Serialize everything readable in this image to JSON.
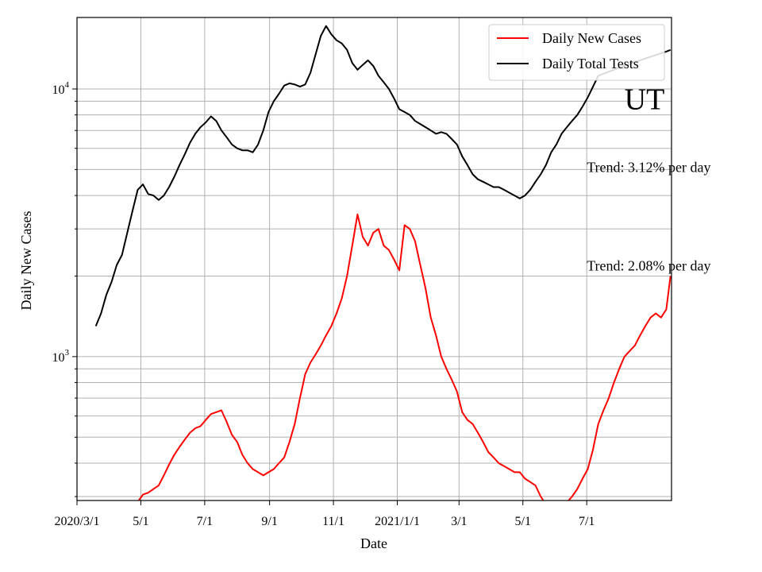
{
  "chart_data": {
    "type": "line",
    "xlabel": "Date",
    "ylabel": "Daily New Cases",
    "y_scale": "log",
    "ylim": [
      290,
      18500
    ],
    "xlim": [
      "2020-03-01",
      "2021-09-20"
    ],
    "grid": true,
    "legend_position": "top-right",
    "x_ticks": [
      {
        "date": "2020-03-01",
        "label": "2020/3/1"
      },
      {
        "date": "2020-05-01",
        "label": "5/1"
      },
      {
        "date": "2020-07-01",
        "label": "7/1"
      },
      {
        "date": "2020-09-01",
        "label": "9/1"
      },
      {
        "date": "2020-11-01",
        "label": "11/1"
      },
      {
        "date": "2021-01-01",
        "label": "2021/1/1"
      },
      {
        "date": "2021-03-01",
        "label": "3/1"
      },
      {
        "date": "2021-05-01",
        "label": "5/1"
      },
      {
        "date": "2021-07-01",
        "label": "7/1"
      }
    ],
    "y_major_ticks": [
      {
        "value": 1000,
        "base": "10",
        "exp": "3"
      },
      {
        "value": 10000,
        "base": "10",
        "exp": "4"
      }
    ],
    "series": [
      {
        "name": "Daily New Cases",
        "color": "#ff0000",
        "x": [
          "2020-04-29",
          "2020-05-03",
          "2020-05-08",
          "2020-05-13",
          "2020-05-18",
          "2020-05-23",
          "2020-05-28",
          "2020-06-02",
          "2020-06-07",
          "2020-06-12",
          "2020-06-17",
          "2020-06-22",
          "2020-06-27",
          "2020-07-02",
          "2020-07-07",
          "2020-07-12",
          "2020-07-17",
          "2020-07-22",
          "2020-07-27",
          "2020-08-01",
          "2020-08-06",
          "2020-08-11",
          "2020-08-16",
          "2020-08-21",
          "2020-08-26",
          "2020-08-31",
          "2020-09-05",
          "2020-09-10",
          "2020-09-15",
          "2020-09-20",
          "2020-09-25",
          "2020-09-30",
          "2020-10-05",
          "2020-10-10",
          "2020-10-15",
          "2020-10-20",
          "2020-10-25",
          "2020-10-30",
          "2020-11-04",
          "2020-11-09",
          "2020-11-14",
          "2020-11-19",
          "2020-11-24",
          "2020-11-29",
          "2020-12-04",
          "2020-12-09",
          "2020-12-14",
          "2020-12-19",
          "2020-12-24",
          "2020-12-29",
          "2021-01-03",
          "2021-01-08",
          "2021-01-13",
          "2021-01-18",
          "2021-01-23",
          "2021-01-28",
          "2021-02-02",
          "2021-02-07",
          "2021-02-12",
          "2021-02-17",
          "2021-02-22",
          "2021-02-27",
          "2021-03-04",
          "2021-03-09",
          "2021-03-14",
          "2021-03-19",
          "2021-03-24",
          "2021-03-29",
          "2021-04-03",
          "2021-04-08",
          "2021-04-13",
          "2021-04-18",
          "2021-04-23",
          "2021-04-28",
          "2021-05-03",
          "2021-05-08",
          "2021-05-13",
          "2021-05-18",
          "2021-05-23",
          "2021-05-28",
          "2021-06-02",
          "2021-06-07",
          "2021-06-12",
          "2021-06-17",
          "2021-06-22",
          "2021-06-27",
          "2021-07-02",
          "2021-07-07",
          "2021-07-12",
          "2021-07-17",
          "2021-07-22",
          "2021-07-27",
          "2021-08-01",
          "2021-08-06",
          "2021-08-11",
          "2021-08-16",
          "2021-08-21",
          "2021-08-26",
          "2021-08-31",
          "2021-09-05",
          "2021-09-10",
          "2021-09-15",
          "2021-09-19"
        ],
        "y": [
          290,
          305,
          310,
          320,
          330,
          360,
          395,
          430,
          460,
          490,
          520,
          540,
          550,
          580,
          610,
          620,
          630,
          570,
          510,
          480,
          430,
          400,
          380,
          370,
          360,
          370,
          380,
          400,
          420,
          480,
          560,
          700,
          860,
          950,
          1020,
          1100,
          1200,
          1300,
          1450,
          1650,
          2000,
          2600,
          3400,
          2800,
          2600,
          2900,
          3000,
          2600,
          2500,
          2300,
          2100,
          3100,
          3000,
          2700,
          2200,
          1800,
          1400,
          1200,
          1000,
          900,
          820,
          740,
          620,
          580,
          560,
          520,
          480,
          440,
          420,
          400,
          390,
          380,
          370,
          370,
          350,
          340,
          330,
          300,
          280,
          270,
          265,
          270,
          285,
          300,
          320,
          350,
          380,
          450,
          560,
          630,
          700,
          800,
          900,
          1000,
          1050,
          1100,
          1200,
          1300,
          1400,
          1450,
          1400,
          1500,
          2000
        ]
      },
      {
        "name": "Daily Total Tests",
        "color": "#000000",
        "x": [
          "2020-03-19",
          "2020-03-24",
          "2020-03-29",
          "2020-04-03",
          "2020-04-08",
          "2020-04-13",
          "2020-04-18",
          "2020-04-23",
          "2020-04-28",
          "2020-05-03",
          "2020-05-08",
          "2020-05-13",
          "2020-05-18",
          "2020-05-23",
          "2020-05-28",
          "2020-06-02",
          "2020-06-07",
          "2020-06-12",
          "2020-06-17",
          "2020-06-22",
          "2020-06-27",
          "2020-07-02",
          "2020-07-07",
          "2020-07-12",
          "2020-07-17",
          "2020-07-22",
          "2020-07-27",
          "2020-08-01",
          "2020-08-06",
          "2020-08-11",
          "2020-08-16",
          "2020-08-21",
          "2020-08-26",
          "2020-08-31",
          "2020-09-05",
          "2020-09-10",
          "2020-09-15",
          "2020-09-20",
          "2020-09-25",
          "2020-09-30",
          "2020-10-05",
          "2020-10-10",
          "2020-10-15",
          "2020-10-20",
          "2020-10-25",
          "2020-10-30",
          "2020-11-04",
          "2020-11-09",
          "2020-11-14",
          "2020-11-19",
          "2020-11-24",
          "2020-11-29",
          "2020-12-04",
          "2020-12-09",
          "2020-12-14",
          "2020-12-19",
          "2020-12-24",
          "2020-12-29",
          "2021-01-03",
          "2021-01-08",
          "2021-01-13",
          "2021-01-18",
          "2021-01-23",
          "2021-01-28",
          "2021-02-02",
          "2021-02-07",
          "2021-02-12",
          "2021-02-17",
          "2021-02-22",
          "2021-02-27",
          "2021-03-04",
          "2021-03-09",
          "2021-03-14",
          "2021-03-19",
          "2021-03-24",
          "2021-03-29",
          "2021-04-03",
          "2021-04-08",
          "2021-04-13",
          "2021-04-18",
          "2021-04-23",
          "2021-04-28",
          "2021-05-03",
          "2021-05-08",
          "2021-05-13",
          "2021-05-18",
          "2021-05-23",
          "2021-05-28",
          "2021-06-02",
          "2021-06-07",
          "2021-06-12",
          "2021-06-17",
          "2021-06-22",
          "2021-06-27",
          "2021-07-02",
          "2021-07-07",
          "2021-07-12",
          "2021-07-17",
          "2021-07-22",
          "2021-07-27",
          "2021-08-01",
          "2021-08-06",
          "2021-08-11",
          "2021-08-16",
          "2021-08-21",
          "2021-08-26",
          "2021-08-31",
          "2021-09-05",
          "2021-09-10",
          "2021-09-15",
          "2021-09-19"
        ],
        "y": [
          1300,
          1450,
          1700,
          1900,
          2200,
          2400,
          2900,
          3500,
          4200,
          4400,
          4050,
          4000,
          3850,
          4000,
          4300,
          4700,
          5200,
          5700,
          6300,
          6800,
          7200,
          7500,
          7900,
          7600,
          7000,
          6600,
          6200,
          6000,
          5900,
          5900,
          5800,
          6200,
          7000,
          8200,
          9000,
          9600,
          10300,
          10500,
          10400,
          10200,
          10400,
          11500,
          13500,
          15800,
          17200,
          16000,
          15200,
          14800,
          14000,
          12500,
          11800,
          12300,
          12800,
          12200,
          11200,
          10600,
          10000,
          9200,
          8400,
          8200,
          8000,
          7600,
          7400,
          7200,
          7000,
          6800,
          6900,
          6800,
          6500,
          6200,
          5600,
          5200,
          4800,
          4600,
          4500,
          4400,
          4300,
          4300,
          4200,
          4100,
          4000,
          3900,
          4000,
          4200,
          4500,
          4800,
          5200,
          5800,
          6200,
          6800,
          7200,
          7600,
          8000,
          8600,
          9300,
          10200,
          11200,
          11400,
          11600,
          11800,
          12000,
          12200,
          12400,
          12600,
          12800,
          13000,
          13200,
          13400,
          13600,
          13800,
          14000
        ]
      }
    ],
    "annotations": [
      {
        "text": "UT",
        "date": "2021-08-06",
        "value": 8400
      },
      {
        "text": "Trend: 3.12% per day",
        "date": "2021-07-01",
        "value": 4900
      },
      {
        "text": "Trend: 2.08% per day",
        "date": "2021-07-01",
        "value": 2100
      }
    ]
  }
}
